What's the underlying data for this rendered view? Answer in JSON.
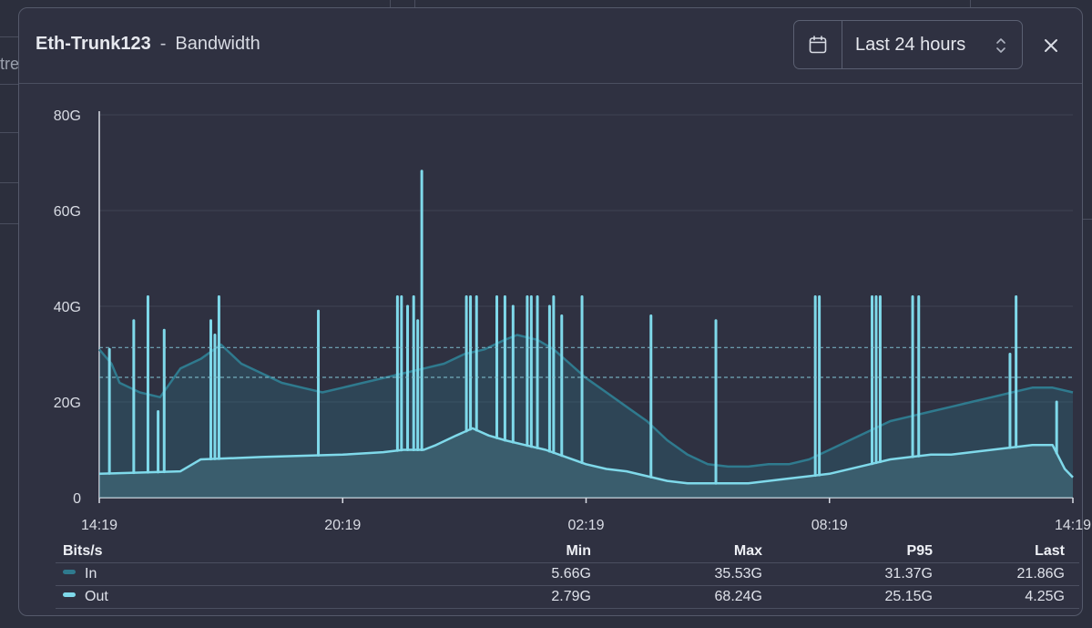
{
  "window": {
    "device": "Eth-Trunk123",
    "separator": "-",
    "metric": "Bandwidth",
    "time_range": "Last 24 hours",
    "background_fragment_text": "tre"
  },
  "colors": {
    "in": "#2f7a8e",
    "out": "#7fd9ea",
    "grid": "#3f4354",
    "axis": "#d9dce4",
    "p95_line": "#7fbfd0"
  },
  "icons": {
    "calendar": "calendar-icon",
    "updown": "chevron-updown-icon",
    "close": "close-icon"
  },
  "chart_data": {
    "type": "area",
    "title": "Eth-Trunk123 - Bandwidth",
    "ylabel": "Bits/s",
    "y_ticks": [
      "0",
      "20G",
      "40G",
      "60G",
      "80G"
    ],
    "y_tick_values": [
      0,
      20,
      40,
      60,
      80
    ],
    "ylim": [
      0,
      80
    ],
    "unit": "Gbit/s",
    "x_ticks": [
      "14:19",
      "20:19",
      "02:19",
      "08:19",
      "14:19"
    ],
    "x_tick_hours": [
      0,
      6,
      12,
      18,
      24
    ],
    "xlim_hours": [
      0,
      24
    ],
    "grid": true,
    "p95_lines": [
      31.37,
      25.15
    ],
    "series": [
      {
        "name": "In",
        "points": [
          [
            0,
            31
          ],
          [
            0.3,
            28
          ],
          [
            0.5,
            24
          ],
          [
            1,
            22
          ],
          [
            1.5,
            21
          ],
          [
            2,
            27
          ],
          [
            2.5,
            29
          ],
          [
            3,
            32
          ],
          [
            3.5,
            28
          ],
          [
            4,
            26
          ],
          [
            4.5,
            24
          ],
          [
            5,
            23
          ],
          [
            5.5,
            22
          ],
          [
            6,
            23
          ],
          [
            6.5,
            24
          ],
          [
            7,
            25
          ],
          [
            7.5,
            26
          ],
          [
            8,
            27
          ],
          [
            8.5,
            28
          ],
          [
            9,
            30
          ],
          [
            9.5,
            31
          ],
          [
            10,
            33
          ],
          [
            10.3,
            34
          ],
          [
            10.8,
            33
          ],
          [
            11.2,
            31
          ],
          [
            11.6,
            28
          ],
          [
            12,
            25
          ],
          [
            12.5,
            22
          ],
          [
            13,
            19
          ],
          [
            13.5,
            16
          ],
          [
            14,
            12
          ],
          [
            14.5,
            9
          ],
          [
            15,
            7
          ],
          [
            15.5,
            6.5
          ],
          [
            16,
            6.5
          ],
          [
            16.5,
            7
          ],
          [
            17,
            7
          ],
          [
            17.5,
            8
          ],
          [
            18,
            10
          ],
          [
            18.5,
            12
          ],
          [
            19,
            14
          ],
          [
            19.5,
            16
          ],
          [
            20,
            17
          ],
          [
            20.5,
            18
          ],
          [
            21,
            19
          ],
          [
            21.5,
            20
          ],
          [
            22,
            21
          ],
          [
            22.5,
            22
          ],
          [
            23,
            23
          ],
          [
            23.5,
            23
          ],
          [
            24,
            22
          ]
        ]
      },
      {
        "name": "Out",
        "points": [
          [
            0,
            5
          ],
          [
            2,
            5.5
          ],
          [
            2.5,
            8
          ],
          [
            4,
            8.5
          ],
          [
            6,
            9
          ],
          [
            7,
            9.5
          ],
          [
            7.5,
            10
          ],
          [
            8,
            10
          ],
          [
            8.3,
            11
          ],
          [
            8.8,
            13
          ],
          [
            9.2,
            14.5
          ],
          [
            9.6,
            13
          ],
          [
            10,
            12
          ],
          [
            10.5,
            11
          ],
          [
            11,
            10
          ],
          [
            12,
            7
          ],
          [
            12.5,
            6
          ],
          [
            13,
            5.5
          ],
          [
            13.5,
            4.5
          ],
          [
            14,
            3.5
          ],
          [
            14.5,
            3
          ],
          [
            15,
            3
          ],
          [
            16,
            3
          ],
          [
            17,
            4
          ],
          [
            18,
            5
          ],
          [
            19,
            7
          ],
          [
            19.5,
            8
          ],
          [
            20,
            8.5
          ],
          [
            20.5,
            9
          ],
          [
            21,
            9
          ],
          [
            22,
            10
          ],
          [
            23,
            11
          ],
          [
            23.5,
            11
          ],
          [
            23.8,
            6
          ],
          [
            24,
            4.25
          ]
        ]
      }
    ],
    "out_spikes": [
      {
        "t": 0.25,
        "v": 31
      },
      {
        "t": 0.85,
        "v": 37
      },
      {
        "t": 1.2,
        "v": 42
      },
      {
        "t": 1.45,
        "v": 18
      },
      {
        "t": 1.6,
        "v": 35
      },
      {
        "t": 2.75,
        "v": 37
      },
      {
        "t": 2.85,
        "v": 34
      },
      {
        "t": 2.95,
        "v": 42
      },
      {
        "t": 5.4,
        "v": 39
      },
      {
        "t": 7.35,
        "v": 42
      },
      {
        "t": 7.45,
        "v": 42
      },
      {
        "t": 7.6,
        "v": 40
      },
      {
        "t": 7.75,
        "v": 42
      },
      {
        "t": 7.85,
        "v": 37
      },
      {
        "t": 7.95,
        "v": 68.24
      },
      {
        "t": 9.05,
        "v": 42
      },
      {
        "t": 9.15,
        "v": 42
      },
      {
        "t": 9.3,
        "v": 42
      },
      {
        "t": 9.8,
        "v": 42
      },
      {
        "t": 10.0,
        "v": 42
      },
      {
        "t": 10.2,
        "v": 40
      },
      {
        "t": 10.55,
        "v": 42
      },
      {
        "t": 10.65,
        "v": 42
      },
      {
        "t": 10.8,
        "v": 42
      },
      {
        "t": 11.1,
        "v": 40
      },
      {
        "t": 11.2,
        "v": 42
      },
      {
        "t": 11.4,
        "v": 38
      },
      {
        "t": 11.9,
        "v": 42
      },
      {
        "t": 13.6,
        "v": 38
      },
      {
        "t": 15.2,
        "v": 37
      },
      {
        "t": 17.65,
        "v": 42
      },
      {
        "t": 17.75,
        "v": 42
      },
      {
        "t": 19.05,
        "v": 42
      },
      {
        "t": 19.15,
        "v": 42
      },
      {
        "t": 19.25,
        "v": 42
      },
      {
        "t": 20.05,
        "v": 42
      },
      {
        "t": 20.2,
        "v": 42
      },
      {
        "t": 22.45,
        "v": 30
      },
      {
        "t": 22.6,
        "v": 42
      },
      {
        "t": 23.6,
        "v": 20
      }
    ]
  },
  "stats": {
    "headers": {
      "name": "Bits/s",
      "min": "Min",
      "max": "Max",
      "p95": "P95",
      "last": "Last"
    },
    "rows": [
      {
        "name": "In",
        "min": "5.66G",
        "max": "35.53G",
        "p95": "31.37G",
        "last": "21.86G"
      },
      {
        "name": "Out",
        "min": "2.79G",
        "max": "68.24G",
        "p95": "25.15G",
        "last": "4.25G"
      }
    ]
  }
}
